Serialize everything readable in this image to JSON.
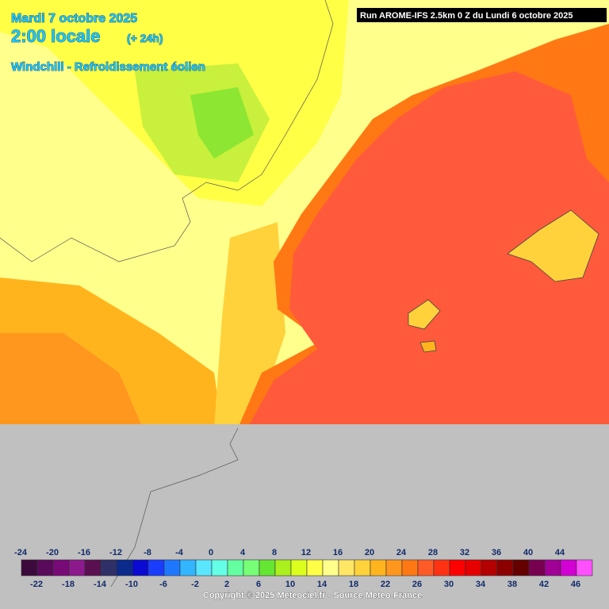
{
  "header": {
    "date": "Mardi 7 octobre 2025",
    "time": "2:00 locale",
    "lead": "(+ 24h)",
    "parameter": "Windchill - Refroidissement éolien",
    "run": "Run AROME-IFS 2.5km 0 Z du Lundi 6 octobre 2025"
  },
  "legend": {
    "ticks": [
      -24,
      -22,
      -20,
      -18,
      -16,
      -14,
      -12,
      -10,
      -8,
      -6,
      -4,
      -2,
      0,
      2,
      4,
      6,
      8,
      10,
      12,
      14,
      16,
      18,
      20,
      22,
      24,
      26,
      28,
      30,
      32,
      34,
      36,
      38,
      40,
      42,
      44,
      46
    ],
    "colors": [
      "#3c0a3c",
      "#5a0a5a",
      "#780a78",
      "#8c1a8c",
      "#5a1050",
      "#303068",
      "#0a2a8c",
      "#0a0ad2",
      "#1a3cff",
      "#1e78ff",
      "#32b4ff",
      "#5ae6ff",
      "#64ffe6",
      "#64ffa0",
      "#78ff78",
      "#64e632",
      "#aaf01e",
      "#dcff1e",
      "#ffff46",
      "#ffff8c",
      "#ffe664",
      "#ffd23c",
      "#ffb41e",
      "#ff961e",
      "#ff7814",
      "#ff5a28",
      "#ff3214",
      "#ff0000",
      "#e60000",
      "#b40000",
      "#8c0000",
      "#640000",
      "#780050",
      "#a00096",
      "#d200d2",
      "#ff50ff"
    ]
  },
  "footer": {
    "copyright": "Copyright © 2025 Meteociel.fr - Source Meteo-France"
  }
}
